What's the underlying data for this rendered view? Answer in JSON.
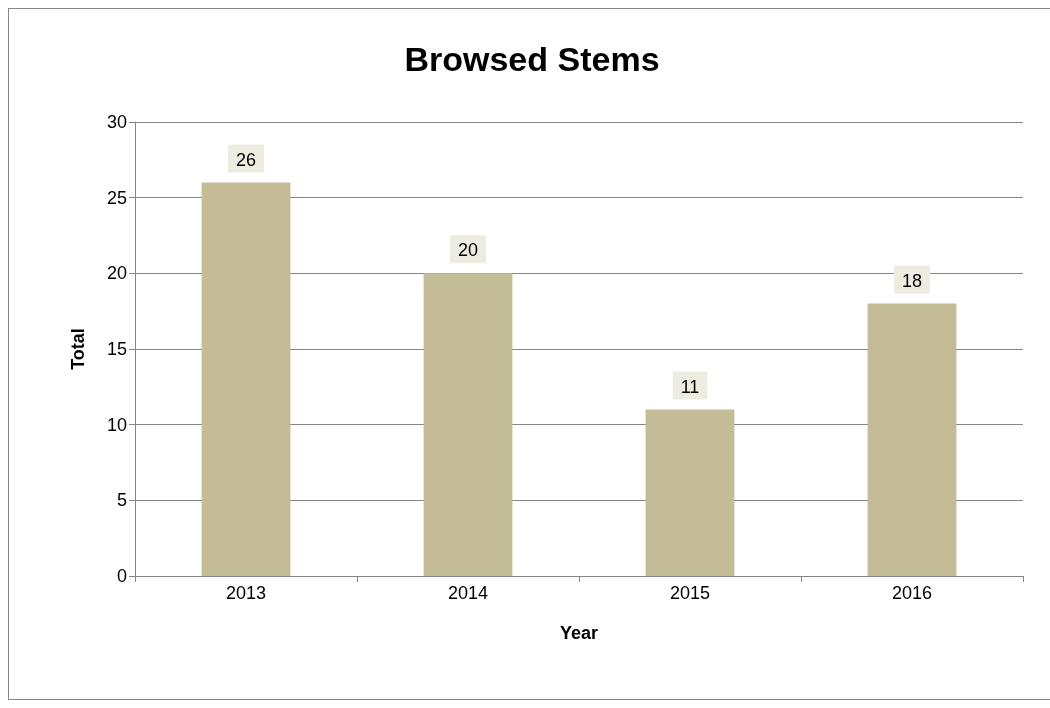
{
  "chart_data": {
    "type": "bar",
    "title": "Browsed Stems",
    "xlabel": "Year",
    "ylabel": "Total",
    "categories": [
      "2013",
      "2014",
      "2015",
      "2016"
    ],
    "values": [
      26,
      20,
      11,
      18
    ],
    "color": "#c4bc96",
    "ylim": [
      0,
      30
    ],
    "yticks": [
      0,
      5,
      10,
      15,
      20,
      25,
      30
    ],
    "grid": "y",
    "data_labels": true
  }
}
